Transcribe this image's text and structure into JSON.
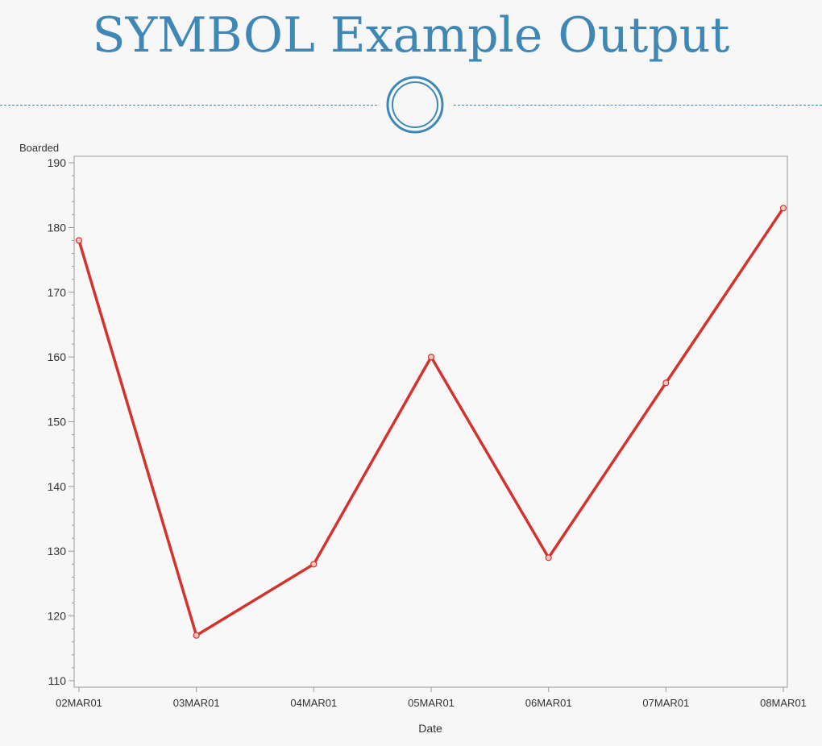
{
  "slide": {
    "title": "SYMBOL Example Output"
  },
  "colors": {
    "title": "#3f87b5",
    "series": "#d4322c",
    "axis": "#9a9a9a",
    "text": "#333333"
  },
  "chart_data": {
    "type": "line",
    "title": "",
    "xlabel": "Date",
    "ylabel": "Boarded",
    "categories": [
      "02MAR01",
      "03MAR01",
      "04MAR01",
      "05MAR01",
      "06MAR01",
      "07MAR01",
      "08MAR01"
    ],
    "series": [
      {
        "values": [
          178,
          117,
          128,
          160,
          129,
          156,
          183
        ],
        "marker": "circle"
      }
    ],
    "ylim": [
      109,
      191
    ],
    "yticks": [
      110,
      120,
      130,
      140,
      150,
      160,
      170,
      180,
      190
    ],
    "y_minor_step": 2,
    "grid": false,
    "legend": "none"
  }
}
